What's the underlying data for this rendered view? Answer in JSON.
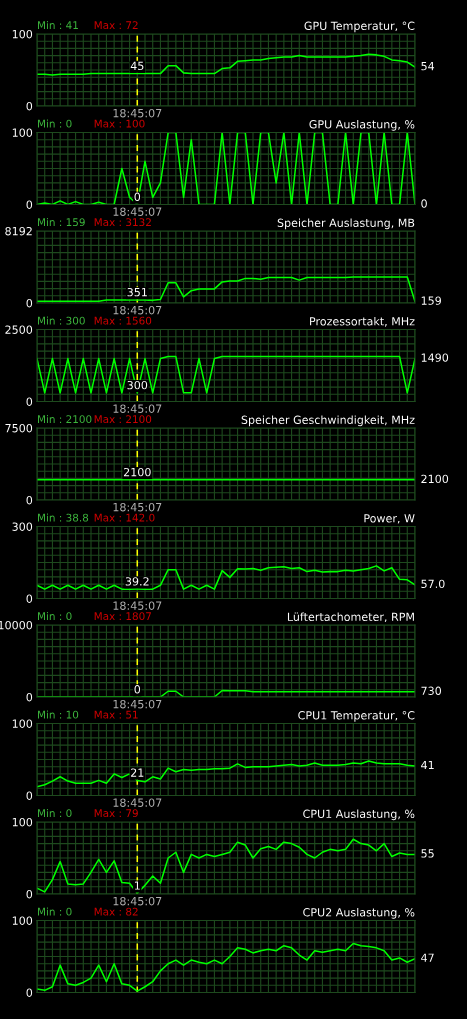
{
  "chart_data": [
    {
      "type": "line",
      "title": "GPU Temperatur, °C",
      "color": "#00ff00",
      "grid": true,
      "ylim": [
        0,
        100
      ],
      "yticks": [
        0,
        {
          "value": 10,
          "label": null
        },
        {
          "value": 20,
          "label": null
        },
        {
          "value": 30,
          "label": null
        },
        {
          "value": 40,
          "label": null
        },
        {
          "value": 50,
          "label": null
        },
        {
          "value": 60,
          "label": null
        },
        {
          "value": 70,
          "label": null
        },
        {
          "value": 80,
          "label": null
        },
        {
          "value": 90,
          "label": null
        },
        100
      ],
      "categories": [
        null,
        null,
        null,
        null,
        null,
        null,
        null,
        null,
        null,
        null,
        null,
        null,
        null,
        "18:45:07",
        null,
        null,
        null,
        null,
        null,
        null,
        null,
        null,
        null,
        null,
        null,
        null,
        null,
        null,
        null,
        null,
        null,
        null,
        null,
        null,
        null,
        null,
        null,
        null,
        null,
        null,
        null,
        null,
        null,
        null,
        null,
        null,
        null,
        null,
        null,
        null
      ],
      "values": [
        44,
        44,
        43,
        44,
        44,
        44,
        44,
        45,
        45,
        45,
        45,
        45,
        45,
        45,
        45,
        45,
        45,
        56,
        56,
        46,
        45,
        45,
        45,
        45,
        52,
        53,
        62,
        63,
        64,
        64,
        66,
        67,
        68,
        68,
        70,
        68,
        68,
        68,
        68,
        68,
        68,
        69,
        70,
        72,
        71,
        69,
        64,
        63,
        61,
        54
      ],
      "ref_lines": [
        {
          "axis": "x",
          "value": "18:45:07",
          "color": "#ffff00",
          "line_style": "dashed"
        }
      ],
      "annotations": [
        "Min : 41",
        "Max : 72",
        {
          "text": "45",
          "x": "18:45:07",
          "y": 45
        },
        "54"
      ]
    },
    {
      "type": "line",
      "title": "GPU Auslastung, %",
      "color": "#00ff00",
      "grid": true,
      "ylim": [
        0,
        100
      ],
      "yticks": [
        0,
        {
          "value": 10,
          "label": null
        },
        {
          "value": 20,
          "label": null
        },
        {
          "value": 30,
          "label": null
        },
        {
          "value": 40,
          "label": null
        },
        {
          "value": 50,
          "label": null
        },
        {
          "value": 60,
          "label": null
        },
        {
          "value": 70,
          "label": null
        },
        {
          "value": 80,
          "label": null
        },
        {
          "value": 90,
          "label": null
        },
        100
      ],
      "categories": [
        null,
        null,
        null,
        null,
        null,
        null,
        null,
        null,
        null,
        null,
        null,
        null,
        null,
        "18:45:07",
        null,
        null,
        null,
        null,
        null,
        null,
        null,
        null,
        null,
        null,
        null,
        null,
        null,
        null,
        null,
        null,
        null,
        null,
        null,
        null,
        null,
        null,
        null,
        null,
        null,
        null,
        null,
        null,
        null,
        null,
        null,
        null,
        null,
        null,
        null,
        null
      ],
      "values": [
        0,
        2,
        0,
        5,
        0,
        4,
        0,
        0,
        3,
        0,
        0,
        50,
        10,
        0,
        60,
        10,
        30,
        100,
        100,
        10,
        90,
        0,
        0,
        0,
        100,
        0,
        100,
        100,
        0,
        100,
        100,
        30,
        100,
        0,
        100,
        0,
        100,
        100,
        0,
        0,
        100,
        0,
        100,
        100,
        0,
        100,
        0,
        0,
        100,
        0
      ],
      "ref_lines": [
        {
          "axis": "x",
          "value": "18:45:07",
          "color": "#ffff00",
          "line_style": "dashed"
        }
      ],
      "annotations": [
        "Min : 0",
        "Max : 100",
        {
          "text": "0",
          "x": "18:45:07",
          "y": 0
        },
        "0"
      ]
    },
    {
      "type": "line",
      "title": "Speicher Auslastung, MB",
      "color": "#00ff00",
      "grid": true,
      "ylim": [
        0,
        8192
      ],
      "yticks": [
        0,
        {
          "value": 819.2,
          "label": null
        },
        {
          "value": 1638.4,
          "label": null
        },
        {
          "value": 2457.6,
          "label": null
        },
        {
          "value": 3276.8,
          "label": null
        },
        {
          "value": 4096,
          "label": null
        },
        {
          "value": 4915.2,
          "label": null
        },
        {
          "value": 5734.4,
          "label": null
        },
        {
          "value": 6553.6,
          "label": null
        },
        {
          "value": 7372.8,
          "label": null
        },
        8192
      ],
      "categories": [
        null,
        null,
        null,
        null,
        null,
        null,
        null,
        null,
        null,
        null,
        null,
        null,
        null,
        "18:45:07",
        null,
        null,
        null,
        null,
        null,
        null,
        null,
        null,
        null,
        null,
        null,
        null,
        null,
        null,
        null,
        null,
        null,
        null,
        null,
        null,
        null,
        null,
        null,
        null,
        null,
        null,
        null,
        null,
        null,
        null,
        null,
        null,
        null,
        null,
        null,
        null
      ],
      "values": [
        200,
        200,
        200,
        200,
        200,
        200,
        200,
        200,
        200,
        350,
        351,
        351,
        351,
        351,
        351,
        300,
        400,
        2300,
        2300,
        700,
        1400,
        1600,
        1600,
        1600,
        2400,
        2500,
        2500,
        2800,
        2800,
        2700,
        2900,
        2900,
        2900,
        2900,
        2600,
        2900,
        2900,
        2900,
        2900,
        2900,
        2900,
        2950,
        2950,
        2950,
        2950,
        2950,
        2950,
        2950,
        2950,
        159
      ],
      "ref_lines": [
        {
          "axis": "x",
          "value": "18:45:07",
          "color": "#ffff00",
          "line_style": "dashed"
        }
      ],
      "annotations": [
        "Min : 159",
        "Max : 3132",
        {
          "text": "351",
          "x": "18:45:07",
          "y": 351
        },
        "159"
      ]
    },
    {
      "type": "line",
      "title": "Prozessortakt, MHz",
      "color": "#00ff00",
      "grid": true,
      "ylim": [
        0,
        2500
      ],
      "yticks": [
        0,
        {
          "value": 250,
          "label": null
        },
        {
          "value": 500,
          "label": null
        },
        {
          "value": 750,
          "label": null
        },
        {
          "value": 1000,
          "label": null
        },
        {
          "value": 1250,
          "label": null
        },
        {
          "value": 1500,
          "label": null
        },
        {
          "value": 1750,
          "label": null
        },
        {
          "value": 2000,
          "label": null
        },
        {
          "value": 2250,
          "label": null
        },
        2500
      ],
      "categories": [
        null,
        null,
        null,
        null,
        null,
        null,
        null,
        null,
        null,
        null,
        null,
        null,
        null,
        "18:45:07",
        null,
        null,
        null,
        null,
        null,
        null,
        null,
        null,
        null,
        null,
        null,
        null,
        null,
        null,
        null,
        null,
        null,
        null,
        null,
        null,
        null,
        null,
        null,
        null,
        null,
        null,
        null,
        null,
        null,
        null,
        null,
        null,
        null,
        null,
        null,
        null
      ],
      "values": [
        1490,
        300,
        1490,
        300,
        1490,
        300,
        1490,
        300,
        1490,
        300,
        1490,
        300,
        1490,
        300,
        1490,
        300,
        1490,
        1560,
        1560,
        300,
        300,
        1490,
        300,
        1490,
        1560,
        1560,
        1560,
        1560,
        1560,
        1560,
        1560,
        1560,
        1560,
        1560,
        1560,
        1560,
        1560,
        1560,
        1560,
        1560,
        1560,
        1560,
        1560,
        1560,
        1560,
        1560,
        1560,
        1560,
        300,
        1490
      ],
      "ref_lines": [
        {
          "axis": "x",
          "value": "18:45:07",
          "color": "#ffff00",
          "line_style": "dashed"
        }
      ],
      "annotations": [
        "Min : 300",
        "Max : 1560",
        {
          "text": "300",
          "x": "18:45:07",
          "y": 300
        },
        "1490"
      ]
    },
    {
      "type": "line",
      "title": "Speicher Geschwindigkeit, MHz",
      "color": "#00ff00",
      "grid": true,
      "ylim": [
        0,
        7500
      ],
      "yticks": [
        0,
        {
          "value": 750,
          "label": null
        },
        {
          "value": 1500,
          "label": null
        },
        {
          "value": 2250,
          "label": null
        },
        {
          "value": 3000,
          "label": null
        },
        {
          "value": 3750,
          "label": null
        },
        {
          "value": 4500,
          "label": null
        },
        {
          "value": 5250,
          "label": null
        },
        {
          "value": 6000,
          "label": null
        },
        {
          "value": 6750,
          "label": null
        },
        7500
      ],
      "categories": [
        null,
        null,
        null,
        null,
        null,
        null,
        null,
        null,
        null,
        null,
        null,
        null,
        null,
        "18:45:07",
        null,
        null,
        null,
        null,
        null,
        null,
        null,
        null,
        null,
        null,
        null,
        null,
        null,
        null,
        null,
        null,
        null,
        null,
        null,
        null,
        null,
        null,
        null,
        null,
        null,
        null,
        null,
        null,
        null,
        null,
        null,
        null,
        null,
        null,
        null,
        null
      ],
      "values": [
        2100,
        2100,
        2100,
        2100,
        2100,
        2100,
        2100,
        2100,
        2100,
        2100,
        2100,
        2100,
        2100,
        2100,
        2100,
        2100,
        2100,
        2100,
        2100,
        2100,
        2100,
        2100,
        2100,
        2100,
        2100,
        2100,
        2100,
        2100,
        2100,
        2100,
        2100,
        2100,
        2100,
        2100,
        2100,
        2100,
        2100,
        2100,
        2100,
        2100,
        2100,
        2100,
        2100,
        2100,
        2100,
        2100,
        2100,
        2100,
        2100,
        2100
      ],
      "ref_lines": [
        {
          "axis": "x",
          "value": "18:45:07",
          "color": "#ffff00",
          "line_style": "dashed"
        }
      ],
      "annotations": [
        "Min : 2100",
        "Max : 2100",
        {
          "text": "2100",
          "x": "18:45:07",
          "y": 2100
        },
        "2100"
      ]
    },
    {
      "type": "line",
      "title": "Power, W",
      "color": "#00ff00",
      "grid": true,
      "ylim": [
        0,
        300
      ],
      "yticks": [
        0,
        {
          "value": 30,
          "label": null
        },
        {
          "value": 60,
          "label": null
        },
        {
          "value": 90,
          "label": null
        },
        {
          "value": 120,
          "label": null
        },
        {
          "value": 150,
          "label": null
        },
        {
          "value": 180,
          "label": null
        },
        {
          "value": 210,
          "label": null
        },
        {
          "value": 240,
          "label": null
        },
        {
          "value": 270,
          "label": null
        },
        300
      ],
      "categories": [
        null,
        null,
        null,
        null,
        null,
        null,
        null,
        null,
        null,
        null,
        null,
        null,
        null,
        "18:45:07",
        null,
        null,
        null,
        null,
        null,
        null,
        null,
        null,
        null,
        null,
        null,
        null,
        null,
        null,
        null,
        null,
        null,
        null,
        null,
        null,
        null,
        null,
        null,
        null,
        null,
        null,
        null,
        null,
        null,
        null,
        null,
        null,
        null,
        null,
        null,
        null
      ],
      "values": [
        55,
        39,
        55,
        39,
        55,
        39,
        55,
        39,
        55,
        39,
        55,
        39,
        39,
        39.2,
        39,
        39,
        55,
        120,
        120,
        39,
        55,
        39,
        55,
        39,
        116,
        88,
        124,
        123,
        125,
        118,
        128,
        130,
        132,
        125,
        128,
        112,
        118,
        110,
        112,
        112,
        118,
        115,
        120,
        125,
        136,
        115,
        128,
        80,
        78,
        57.0
      ],
      "ref_lines": [
        {
          "axis": "x",
          "value": "18:45:07",
          "color": "#ffff00",
          "line_style": "dashed"
        }
      ],
      "annotations": [
        "Min : 38.8",
        "Max : 142.0",
        {
          "text": "39.2",
          "x": "18:45:07",
          "y": 39.2
        },
        "57.0"
      ]
    },
    {
      "type": "line",
      "title": "Lüftertachometer, RPM",
      "color": "#00ff00",
      "grid": true,
      "ylim": [
        0,
        10000
      ],
      "yticks": [
        0,
        {
          "value": 1000,
          "label": null
        },
        {
          "value": 2000,
          "label": null
        },
        {
          "value": 3000,
          "label": null
        },
        {
          "value": 4000,
          "label": null
        },
        {
          "value": 5000,
          "label": null
        },
        {
          "value": 6000,
          "label": null
        },
        {
          "value": 7000,
          "label": null
        },
        {
          "value": 8000,
          "label": null
        },
        {
          "value": 9000,
          "label": null
        },
        10000
      ],
      "categories": [
        null,
        null,
        null,
        null,
        null,
        null,
        null,
        null,
        null,
        null,
        null,
        null,
        null,
        "18:45:07",
        null,
        null,
        null,
        null,
        null,
        null,
        null,
        null,
        null,
        null,
        null,
        null,
        null,
        null,
        null,
        null,
        null,
        null,
        null,
        null,
        null,
        null,
        null,
        null,
        null,
        null,
        null,
        null,
        null,
        null,
        null,
        null,
        null,
        null,
        null,
        null
      ],
      "values": [
        0,
        0,
        0,
        0,
        0,
        0,
        0,
        0,
        0,
        0,
        0,
        0,
        0,
        0,
        0,
        0,
        0,
        800,
        800,
        0,
        0,
        0,
        0,
        0,
        900,
        880,
        880,
        880,
        730,
        730,
        730,
        730,
        730,
        730,
        730,
        730,
        730,
        730,
        730,
        730,
        730,
        730,
        730,
        730,
        730,
        730,
        730,
        730,
        730,
        730
      ],
      "ref_lines": [
        {
          "axis": "x",
          "value": "18:45:07",
          "color": "#ffff00",
          "line_style": "dashed"
        }
      ],
      "annotations": [
        "Min : 0",
        "Max : 1807",
        {
          "text": "0",
          "x": "18:45:07",
          "y": 0
        },
        "730"
      ]
    },
    {
      "type": "line",
      "title": "CPU1 Temperatur, °C",
      "color": "#00ff00",
      "grid": true,
      "ylim": [
        0,
        100
      ],
      "yticks": [
        0,
        {
          "value": 10,
          "label": null
        },
        {
          "value": 20,
          "label": null
        },
        {
          "value": 30,
          "label": null
        },
        {
          "value": 40,
          "label": null
        },
        {
          "value": 50,
          "label": null
        },
        {
          "value": 60,
          "label": null
        },
        {
          "value": 70,
          "label": null
        },
        {
          "value": 80,
          "label": null
        },
        {
          "value": 90,
          "label": null
        },
        100
      ],
      "categories": [
        null,
        null,
        null,
        null,
        null,
        null,
        null,
        null,
        null,
        null,
        null,
        null,
        null,
        "18:45:07",
        null,
        null,
        null,
        null,
        null,
        null,
        null,
        null,
        null,
        null,
        null,
        null,
        null,
        null,
        null,
        null,
        null,
        null,
        null,
        null,
        null,
        null,
        null,
        null,
        null,
        null,
        null,
        null,
        null,
        null,
        null,
        null,
        null,
        null,
        null,
        null
      ],
      "values": [
        12,
        15,
        20,
        26,
        20,
        17,
        17,
        17,
        21,
        17,
        30,
        25,
        30,
        21,
        19,
        26,
        23,
        38,
        33,
        36,
        35,
        36,
        36,
        37,
        37,
        38,
        44,
        39,
        40,
        40,
        40,
        41,
        42,
        43,
        41,
        42,
        45,
        42,
        42,
        42,
        43,
        45,
        44,
        48,
        45,
        44,
        44,
        44,
        42,
        41
      ],
      "ref_lines": [
        {
          "axis": "x",
          "value": "18:45:07",
          "color": "#ffff00",
          "line_style": "dashed"
        }
      ],
      "annotations": [
        "Min : 10",
        "Max : 51",
        {
          "text": "21",
          "x": "18:45:07",
          "y": 21
        },
        "41"
      ]
    },
    {
      "type": "line",
      "title": "CPU1 Auslastung, %",
      "color": "#00ff00",
      "grid": true,
      "ylim": [
        0,
        100
      ],
      "yticks": [
        0,
        {
          "value": 10,
          "label": null
        },
        {
          "value": 20,
          "label": null
        },
        {
          "value": 30,
          "label": null
        },
        {
          "value": 40,
          "label": null
        },
        {
          "value": 50,
          "label": null
        },
        {
          "value": 60,
          "label": null
        },
        {
          "value": 70,
          "label": null
        },
        {
          "value": 80,
          "label": null
        },
        {
          "value": 90,
          "label": null
        },
        100
      ],
      "categories": [
        null,
        null,
        null,
        null,
        null,
        null,
        null,
        null,
        null,
        null,
        null,
        null,
        null,
        "18:45:07",
        null,
        null,
        null,
        null,
        null,
        null,
        null,
        null,
        null,
        null,
        null,
        null,
        null,
        null,
        null,
        null,
        null,
        null,
        null,
        null,
        null,
        null,
        null,
        null,
        null,
        null,
        null,
        null,
        null,
        null,
        null,
        null,
        null,
        null,
        null,
        null
      ],
      "values": [
        8,
        3,
        20,
        45,
        14,
        13,
        14,
        30,
        48,
        30,
        46,
        16,
        15,
        1,
        12,
        25,
        15,
        50,
        58,
        30,
        55,
        50,
        55,
        52,
        55,
        58,
        72,
        68,
        50,
        63,
        66,
        62,
        72,
        70,
        65,
        55,
        50,
        58,
        62,
        60,
        62,
        76,
        70,
        68,
        60,
        70,
        52,
        57,
        55,
        55
      ],
      "ref_lines": [
        {
          "axis": "x",
          "value": "18:45:07",
          "color": "#ffff00",
          "line_style": "dashed"
        }
      ],
      "annotations": [
        "Min : 0",
        "Max : 79",
        {
          "text": "1",
          "x": "18:45:07",
          "y": 1
        },
        "55"
      ]
    },
    {
      "type": "line",
      "title": "CPU2 Auslastung, %",
      "color": "#00ff00",
      "grid": true,
      "ylim": [
        0,
        100
      ],
      "yticks": [
        0,
        {
          "value": 10,
          "label": null
        },
        {
          "value": 20,
          "label": null
        },
        {
          "value": 30,
          "label": null
        },
        {
          "value": 40,
          "label": null
        },
        {
          "value": 50,
          "label": null
        },
        {
          "value": 60,
          "label": null
        },
        {
          "value": 70,
          "label": null
        },
        {
          "value": 80,
          "label": null
        },
        {
          "value": 90,
          "label": null
        },
        100
      ],
      "categories": [
        null,
        null,
        null,
        null,
        null,
        null,
        null,
        null,
        null,
        null,
        null,
        null,
        null,
        null,
        null,
        null,
        null,
        null,
        null,
        null,
        null,
        null,
        null,
        null,
        null,
        null,
        null,
        null,
        null,
        null,
        null,
        null,
        null,
        null,
        null,
        null,
        null,
        null,
        null,
        null,
        null,
        null,
        null,
        null,
        null,
        null,
        null,
        null,
        null,
        null
      ],
      "values": [
        5,
        3,
        8,
        38,
        12,
        10,
        14,
        20,
        38,
        15,
        40,
        12,
        10,
        2,
        8,
        15,
        30,
        40,
        45,
        38,
        45,
        42,
        40,
        45,
        40,
        50,
        62,
        60,
        55,
        58,
        60,
        58,
        65,
        62,
        52,
        45,
        58,
        56,
        58,
        60,
        58,
        68,
        65,
        64,
        62,
        58,
        45,
        48,
        42,
        47
      ],
      "annotations": [
        "Min : 0",
        "Max : 82",
        "47"
      ]
    }
  ]
}
